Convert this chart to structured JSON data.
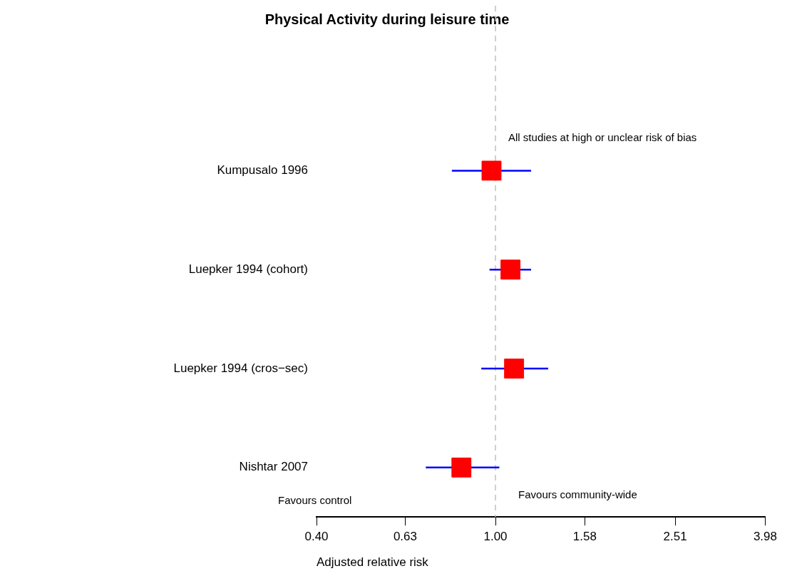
{
  "chart_data": {
    "type": "scatter",
    "orientation": "horizontal",
    "title": "Physical Activity during leisure time",
    "xlabel": "Adjusted relative risk",
    "categories": [
      "Kumpusalo 1996",
      "Luepker 1994 (cohort)",
      "Luepker 1994 (cros−sec)",
      "Nishtar 2007"
    ],
    "values": [
      0.98,
      1.08,
      1.1,
      0.84
    ],
    "errors": [
      [
        0.8,
        1.2
      ],
      [
        0.97,
        1.2
      ],
      [
        0.93,
        1.31
      ],
      [
        0.7,
        1.02
      ]
    ],
    "color": "#ff0000",
    "marker": "square",
    "log": "x",
    "xlim": [
      0.4,
      3.98
    ],
    "xticks": [
      {
        "value": 0.4,
        "label": "0.40"
      },
      0.63,
      {
        "value": 1,
        "label": "1.00"
      },
      1.58,
      2.51,
      3.98
    ],
    "ref_lines": [
      {
        "axis": "x",
        "value": 1,
        "line_style": "dashed",
        "color": "#c0c0c0"
      }
    ],
    "annotations": [
      "All studies at high or unclear risk of bias",
      "Favours control",
      "Favours community-wide"
    ],
    "grid": false,
    "legend": false
  }
}
